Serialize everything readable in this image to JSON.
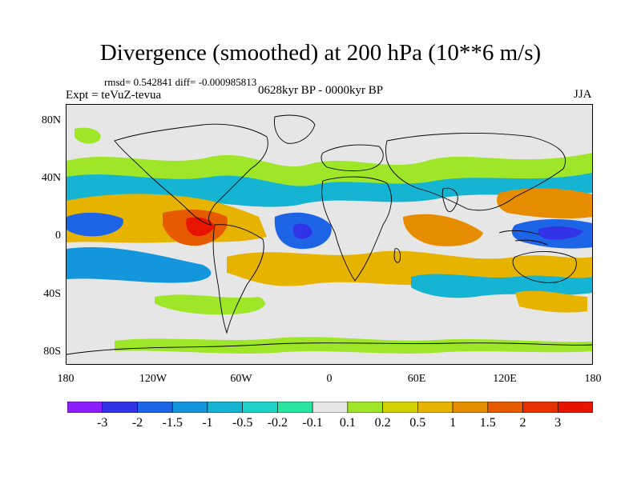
{
  "figure": {
    "title": "Divergence (smoothed) at 200 hPa (10**6 m/s)",
    "stats": "rmsd= 0.542841 diff= -0.000985813",
    "experiment": "Expt = teVuZ-tevua",
    "period": "0628kyr BP - 0000kyr BP",
    "season": "JJA"
  },
  "map": {
    "lat_labels": [
      "80N",
      "40N",
      "0",
      "40S",
      "80S"
    ],
    "lon_labels": [
      "180",
      "120W",
      "60W",
      "0",
      "60E",
      "120E",
      "180"
    ],
    "background_color": "#e6e6e6",
    "coastline_color": "#000000"
  },
  "colorbar": {
    "labels": [
      "-3",
      "-2",
      "-1.5",
      "-1",
      "-0.5",
      "-0.2",
      "-0.1",
      "0.1",
      "0.2",
      "0.5",
      "1",
      "1.5",
      "2",
      "3"
    ],
    "colors": [
      "#8c1eff",
      "#3232e6",
      "#1e64e6",
      "#1496dc",
      "#14b4d2",
      "#1ed2c8",
      "#28e6a0",
      "#e6e6e6",
      "#a0e628",
      "#d2d200",
      "#e6b400",
      "#e68c00",
      "#e65a00",
      "#e63200",
      "#e61400"
    ]
  },
  "chart_data": {
    "type": "heatmap",
    "title": "Divergence (smoothed) at 200 hPa (10**6 m/s)",
    "subtitle": "0628kyr BP - 0000kyr BP",
    "season": "JJA",
    "variable": "Divergence (smoothed) at 200 hPa",
    "units": "10**6 m/s",
    "rmsd": 0.542841,
    "diff": -0.000985813,
    "x_range": [
      -180,
      180
    ],
    "y_range": [
      -90,
      90
    ],
    "contour_levels": [
      -3,
      -2,
      -1.5,
      -1,
      -0.5,
      -0.2,
      -0.1,
      0.1,
      0.2,
      0.5,
      1,
      1.5,
      2,
      3
    ],
    "features": [
      {
        "lon": -165,
        "lat": 3,
        "value": -2
      },
      {
        "lon": -95,
        "lat": 0,
        "value": 3
      },
      {
        "lon": -20,
        "lat": 3,
        "value": -2
      },
      {
        "lon": 50,
        "lat": -10,
        "value": 1
      },
      {
        "lon": 150,
        "lat": 0,
        "value": -3
      },
      {
        "lon": 100,
        "lat": 30,
        "value": 1
      },
      {
        "lon": -120,
        "lat": -15,
        "value": -1
      },
      {
        "lon": 130,
        "lat": -25,
        "value": 0.5
      }
    ]
  }
}
